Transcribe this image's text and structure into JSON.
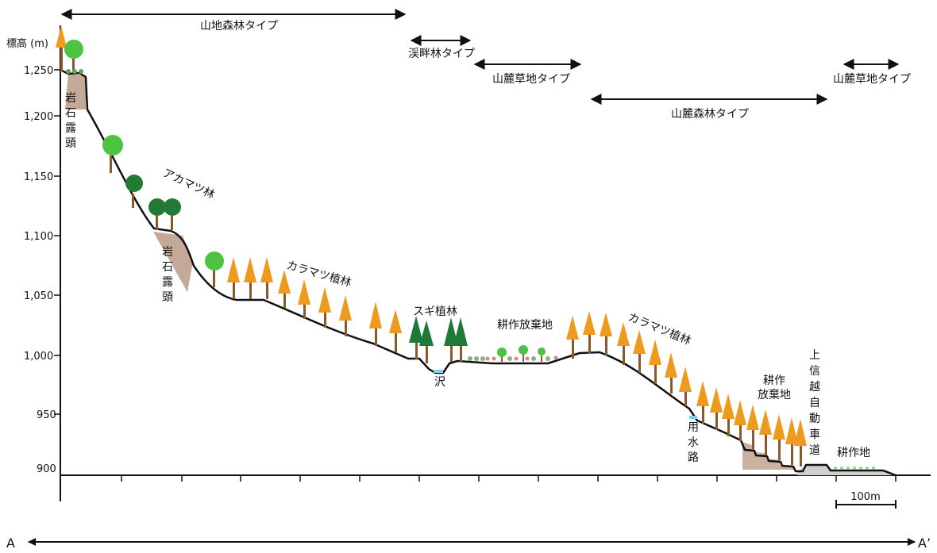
{
  "yaxis": {
    "label": "標高 (m)",
    "ticks": [
      "1,250",
      "1,200",
      "1,150",
      "1,100",
      "1,050",
      "1,000",
      "950",
      "900"
    ]
  },
  "zones": {
    "mountain_forest": "山地森林タイプ",
    "streamside_forest": "渓畔林タイプ",
    "foothill_grass_1": "山麓草地タイプ",
    "foothill_forest": "山麓森林タイプ",
    "foothill_grass_2": "山麓草地タイプ"
  },
  "labels": {
    "rock_1": "岩石露頭",
    "rock_2": "岩石露頭",
    "red_pine": "アカマツ林",
    "larch_1": "カラマツ植林",
    "cedar": "スギ植林",
    "stream": "沢",
    "abandoned_1": "耕作放棄地",
    "larch_2": "カラマツ植林",
    "irrigation": "用水路",
    "abandoned_2_line1": "耕作",
    "abandoned_2_line2": "放棄地",
    "expressway": "上信越自動車道",
    "farmland": "耕作地"
  },
  "scale_bar": "100m",
  "section": {
    "start": "A",
    "end": "A’"
  },
  "colors": {
    "larch": "#EE9A1E",
    "trunk": "#8B5A2B",
    "broadleaf_light": "#4CC441",
    "broadleaf_dark": "#237A35",
    "cedar": "#1F7A3A",
    "rock": "#C4A898",
    "water": "#7FD0E8",
    "road": "#CFCFCF"
  }
}
